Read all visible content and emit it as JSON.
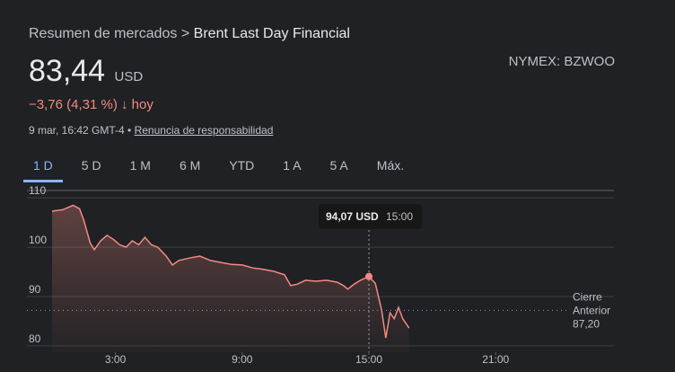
{
  "header": {
    "breadcrumb_root": "Resumen de mercados",
    "breadcrumb_separator": ">",
    "breadcrumb_current": "Brent Last Day Financial",
    "price": "83,44",
    "currency": "USD",
    "ticker": "NYMEX: BZWOO",
    "change": "−3,76 (4,31 %)",
    "change_arrow": "↓",
    "change_period": "hoy",
    "timestamp": "9 mar, 16:42 GMT-4 •",
    "disclaimer": "Renuncia de responsabilidad"
  },
  "tabs": [
    "1 D",
    "5 D",
    "1 M",
    "6 M",
    "YTD",
    "1 A",
    "5 A",
    "Máx."
  ],
  "chart_data": {
    "type": "line",
    "x": [
      0,
      0.5,
      1,
      1.3,
      1.5,
      1.8,
      2.0,
      2.3,
      2.6,
      2.9,
      3.2,
      3.5,
      3.8,
      4.1,
      4.4,
      4.7,
      5.0,
      5.4,
      5.7,
      6.0,
      6.5,
      7.0,
      7.5,
      8.0,
      8.5,
      9.0,
      9.5,
      10,
      10.5,
      11,
      11.3,
      11.6,
      12,
      12.5,
      13,
      13.5,
      13.8,
      14,
      14.3,
      14.6,
      15,
      15.3,
      15.6,
      15.8,
      16.0,
      16.2,
      16.4,
      16.6,
      16.9
    ],
    "series": [
      {
        "color": "#f28b82",
        "values": [
          107.3,
          107.6,
          108.5,
          107.8,
          105.5,
          100.9,
          99.5,
          101.3,
          102.4,
          101.6,
          100.5,
          100,
          101.3,
          100.5,
          102,
          100.5,
          100,
          98.2,
          96.4,
          97.3,
          97.8,
          98.2,
          97.3,
          96.9,
          96.5,
          96.4,
          95.8,
          95.5,
          95.1,
          94.4,
          92.2,
          92.5,
          93.3,
          93.1,
          93.3,
          92.9,
          92.2,
          91.5,
          92.5,
          93.3,
          94.07,
          92.7,
          87.3,
          81.6,
          86.7,
          85.5,
          87.8,
          85.5,
          83.6
        ]
      }
    ],
    "xlim": [
      0,
      26.6
    ],
    "ylim": [
      78.7,
      111.5
    ],
    "xticks": [
      {
        "value": 3,
        "label": "3:00"
      },
      {
        "value": 9,
        "label": "9:00"
      },
      {
        "value": 15,
        "label": "15:00"
      },
      {
        "value": 21,
        "label": "21:00"
      }
    ],
    "yticks": [
      80,
      90,
      100,
      110
    ],
    "grid": true,
    "prev_close": {
      "label": [
        "Cierre",
        "Anterior"
      ],
      "value": 87.2,
      "value_label": "87,20"
    },
    "tooltip": {
      "x": 15,
      "x_label": "15:00",
      "value": 94.07,
      "value_label": "94,07 USD"
    }
  }
}
